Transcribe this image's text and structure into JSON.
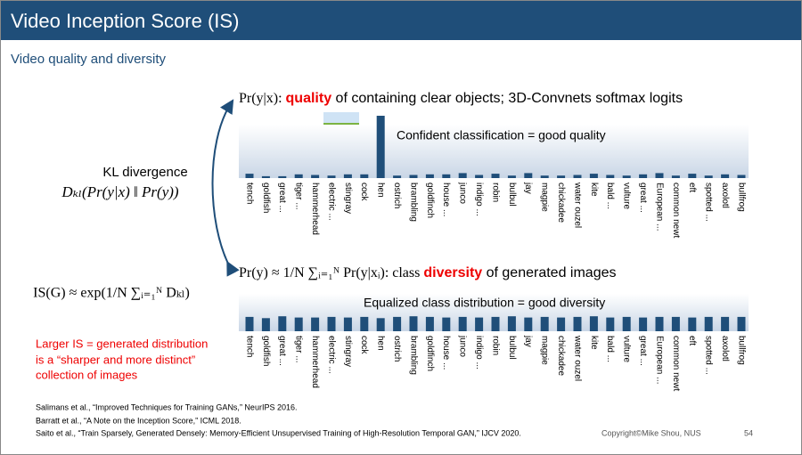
{
  "header": {
    "title": "Video Inception Score (IS)"
  },
  "subtitle": "Video quality and diversity",
  "left": {
    "kl_label": "KL divergence",
    "kl_formula": "Dₖₗ(Pr(y|x) ‖ Pr(y))",
    "is_formula": "IS(G) ≈ exp(1/N ∑ᵢ₌₁ᴺ Dₖₗ)",
    "note": [
      "Larger IS = generated distribution",
      "is a “sharper and more distinct”",
      "collection of images"
    ]
  },
  "chart_data": [
    {
      "type": "bar",
      "heading": {
        "prefix": "Pr(y|x): ",
        "highlight": "quality",
        "suffix": " of containing clear objects; 3D-Convnets softmax logits"
      },
      "annotation": "Confident classification = good quality",
      "categories": [
        "tench",
        "goldfish",
        "great ...",
        "tiger ...",
        "hammerhead",
        "electric ...",
        "stingray",
        "cock",
        "hen",
        "ostrich",
        "brambling",
        "goldfinch",
        "house ...",
        "junco",
        "indigo ...",
        "robin",
        "bulbul",
        "jay",
        "magpie",
        "chickadee",
        "water ouzel",
        "kite",
        "bald ...",
        "vulture",
        "great ...",
        "European ...",
        "common newt",
        "eft",
        "spotted ...",
        "axolotl",
        "bullfrog"
      ],
      "values": [
        0.07,
        0.03,
        0.03,
        0.06,
        0.05,
        0.04,
        0.06,
        0.06,
        1.0,
        0.04,
        0.05,
        0.06,
        0.06,
        0.08,
        0.05,
        0.07,
        0.04,
        0.08,
        0.04,
        0.04,
        0.05,
        0.07,
        0.05,
        0.04,
        0.06,
        0.08,
        0.04,
        0.07,
        0.04,
        0.06,
        0.05
      ],
      "color": "#1f4e79",
      "ylim": [
        0,
        1
      ]
    },
    {
      "type": "bar",
      "heading": {
        "prefix": "Pr(y) ≈ 1/N ∑ᵢ₌₁ᴺ Pr(y|xᵢ): class ",
        "highlight": "diversity",
        "suffix": " of generated images"
      },
      "annotation": "Equalized class distribution = good diversity",
      "categories": [
        "tench",
        "goldfish",
        "great ...",
        "tiger ...",
        "hammerhead",
        "electric ...",
        "stingray",
        "cock",
        "hen",
        "ostrich",
        "brambling",
        "goldfinch",
        "house ...",
        "junco",
        "indigo ...",
        "robin",
        "bulbul",
        "jay",
        "magpie",
        "chickadee",
        "water ouzel",
        "kite",
        "bald ...",
        "vulture",
        "great ...",
        "European ...",
        "common newt",
        "eft",
        "spotted ...",
        "axolotl",
        "bullfrog"
      ],
      "values": [
        0.23,
        0.21,
        0.24,
        0.22,
        0.22,
        0.23,
        0.22,
        0.23,
        0.21,
        0.23,
        0.24,
        0.23,
        0.22,
        0.23,
        0.22,
        0.23,
        0.24,
        0.22,
        0.23,
        0.22,
        0.23,
        0.24,
        0.22,
        0.23,
        0.22,
        0.23,
        0.23,
        0.22,
        0.23,
        0.23,
        0.23
      ],
      "color": "#1f4e79",
      "ylim": [
        0,
        1
      ]
    }
  ],
  "references": [
    "Salimans et al., “Improved Techniques for Training GANs,” NeurIPS 2016.",
    "Barratt et al., “A Note on the Inception Score,” ICML 2018.",
    "Saito et al., “Train Sparsely, Generated Densely: Memory-Efficient Unsupervised Training of High-Resolution Temporal GAN,” IJCV 2020."
  ],
  "footer": {
    "copyright": "Copyright©Mike Shou, NUS",
    "page": "54"
  }
}
